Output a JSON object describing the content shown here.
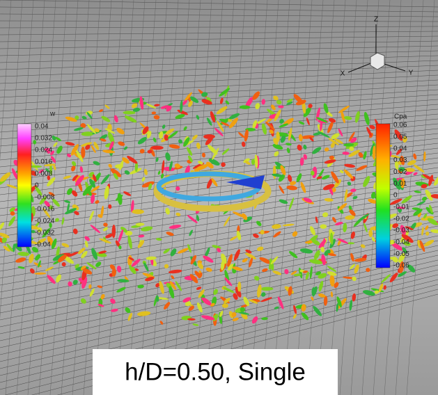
{
  "triad": {
    "z": "Z",
    "x": "X",
    "y": "Y"
  },
  "left_colorbar": {
    "title": "w",
    "labels": [
      "0.04",
      "0.032",
      "0.024",
      "0.016",
      "0.008",
      "0",
      "-0.008",
      "-0.016",
      "-0.024",
      "-0.032",
      "-0.04"
    ]
  },
  "right_colorbar": {
    "title": "Cpa",
    "labels": [
      "0.06",
      "0.05",
      "0.04",
      "0.03",
      "0.02",
      "0.01",
      "0",
      "-0.01",
      "-0.02",
      "-0.03",
      "-0.04",
      "-0.05",
      "-0.06"
    ]
  },
  "caption": "h/D=0.50, Single"
}
